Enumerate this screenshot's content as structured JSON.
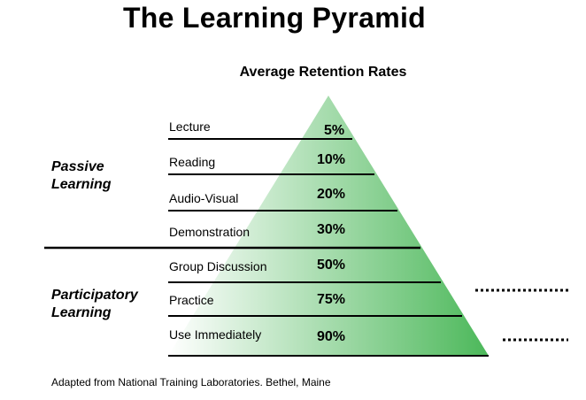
{
  "title": "The Learning Pyramid",
  "subtitle": "Average Retention Rates",
  "groups": {
    "passive": "Passive Learning",
    "participatory": "Participatory Learning"
  },
  "levels": [
    {
      "method": "Lecture",
      "rate": "5%"
    },
    {
      "method": "Reading",
      "rate": "10%"
    },
    {
      "method": "Audio-Visual",
      "rate": "20%"
    },
    {
      "method": "Demonstration",
      "rate": "30%"
    },
    {
      "method": "Group Discussion",
      "rate": "50%"
    },
    {
      "method": "Practice",
      "rate": "75%"
    },
    {
      "method": "Use Immediately",
      "rate": "90%"
    }
  ],
  "footnote": "Adapted from National Training Laboratories. Bethel, Maine",
  "colors": {
    "pyramid_light": "#ffffff",
    "pyramid_dark": "#4cb85a"
  }
}
